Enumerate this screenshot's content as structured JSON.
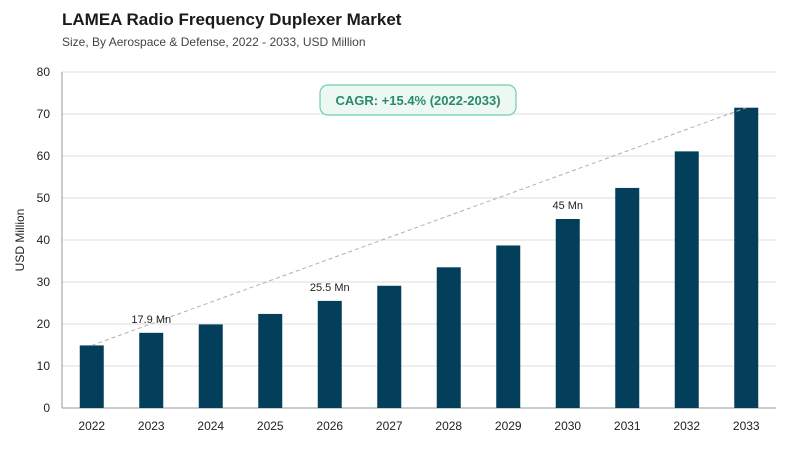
{
  "chart_data": {
    "type": "bar",
    "title": "LAMEA Radio Frequency Duplexer Market",
    "subtitle": "Size, By Aerospace & Defense, 2022 - 2033, USD Million",
    "xlabel": "",
    "ylabel": "USD Million",
    "ylim": [
      0,
      80
    ],
    "yticks": [
      0,
      10,
      20,
      30,
      40,
      50,
      60,
      70,
      80
    ],
    "categories": [
      "2022",
      "2023",
      "2024",
      "2025",
      "2026",
      "2027",
      "2028",
      "2029",
      "2030",
      "2031",
      "2032",
      "2033"
    ],
    "values": [
      14.9,
      17.9,
      19.9,
      22.4,
      25.5,
      29.1,
      33.5,
      38.7,
      45.0,
      52.4,
      61.1,
      71.5
    ],
    "data_labels": [
      {
        "category": "2023",
        "text": "17.9 Mn"
      },
      {
        "category": "2026",
        "text": "25.5 Mn"
      },
      {
        "category": "2030",
        "text": "45 Mn"
      }
    ],
    "annotation": "CAGR: +15.4% (2022-2033)",
    "trendline": {
      "from": "2022",
      "to": "2033",
      "style": "dashed"
    },
    "bar_color": "#033e5a",
    "grid": "horizontal",
    "legend": "none"
  }
}
